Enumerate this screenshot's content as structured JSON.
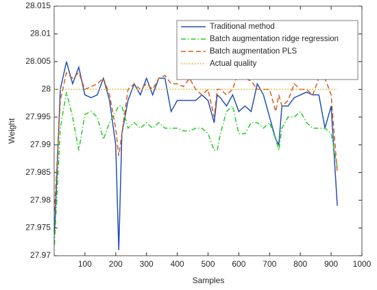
{
  "chart_data": {
    "type": "line",
    "x_label": "Samples",
    "y_label": "Weight",
    "x": [
      1,
      20,
      40,
      60,
      80,
      100,
      120,
      140,
      160,
      180,
      200,
      210,
      220,
      240,
      260,
      280,
      300,
      320,
      340,
      360,
      380,
      400,
      420,
      440,
      460,
      480,
      500,
      520,
      530,
      540,
      560,
      580,
      600,
      620,
      640,
      660,
      680,
      700,
      720,
      730,
      740,
      760,
      780,
      800,
      820,
      840,
      860,
      880,
      900,
      920
    ],
    "series": [
      {
        "name": "Traditional method",
        "color": "#1f4fb4",
        "linestyle": "solid",
        "values": [
          27.974,
          28.0,
          28.005,
          28.001,
          28.004,
          27.999,
          27.9985,
          27.999,
          28.002,
          27.998,
          27.99,
          27.971,
          27.992,
          27.998,
          28.001,
          27.999,
          28.002,
          27.999,
          28.002,
          28.002,
          27.996,
          27.998,
          27.998,
          27.998,
          27.998,
          27.999,
          27.998,
          27.994,
          27.999,
          27.9985,
          27.997,
          27.999,
          27.996,
          27.997,
          27.996,
          28.001,
          27.999,
          27.995,
          27.991,
          27.99,
          27.997,
          27.997,
          27.9985,
          27.999,
          27.9995,
          27.999,
          27.999,
          27.993,
          27.997,
          27.979
        ]
      },
      {
        "name": "Batch augmentation ridge regression",
        "color": "#22cc22",
        "linestyle": "dashdot",
        "values": [
          27.972,
          27.993,
          27.9995,
          27.995,
          27.989,
          27.9955,
          27.996,
          27.995,
          27.991,
          27.994,
          27.996,
          27.997,
          27.997,
          27.993,
          27.994,
          27.993,
          27.994,
          27.993,
          27.994,
          27.993,
          27.993,
          27.993,
          27.9925,
          27.9925,
          27.993,
          27.993,
          27.992,
          27.989,
          27.989,
          27.992,
          27.996,
          27.997,
          27.992,
          27.992,
          27.994,
          27.994,
          27.993,
          27.994,
          27.991,
          27.989,
          27.993,
          27.995,
          27.995,
          27.996,
          27.994,
          27.993,
          27.993,
          27.993,
          27.992,
          27.986
        ]
      },
      {
        "name": "Batch augmentation PLS",
        "color": "#d9591a",
        "linestyle": "dashed",
        "values": [
          27.978,
          27.998,
          28.003,
          28.002,
          28.003,
          28.0,
          28.0005,
          28.001,
          28.002,
          27.999,
          27.993,
          27.988,
          27.992,
          28.0,
          28.001,
          28.0,
          28.001,
          28.0,
          28.002,
          28.0025,
          28.001,
          28.001,
          28.0005,
          28.002,
          28.0,
          27.999,
          28.0,
          27.995,
          28.0,
          28.0,
          27.999,
          28.0,
          28.0035,
          28.002,
          28.0015,
          28.0,
          28.0,
          28.0,
          27.996,
          27.999,
          27.997,
          27.998,
          28.001,
          28.0,
          28.0,
          27.999,
          28.002,
          28.002,
          27.999,
          27.985
        ]
      },
      {
        "name": "Actual quality",
        "color": "#e8a317",
        "linestyle": "dotted",
        "values": [
          28,
          28,
          28,
          28,
          28,
          28,
          28,
          28,
          28,
          28,
          28,
          28,
          28,
          28,
          28,
          28,
          28,
          28,
          28,
          28,
          28,
          28,
          28,
          28,
          28,
          28,
          28,
          28,
          28,
          28,
          28,
          28,
          28,
          28,
          28,
          28,
          28,
          28,
          28,
          28,
          28,
          28,
          28,
          28,
          28,
          28,
          28,
          28,
          28,
          28
        ]
      }
    ],
    "xlim": [
      0,
      1000
    ],
    "xticks": [
      100,
      200,
      300,
      400,
      500,
      600,
      700,
      800,
      900,
      1000
    ],
    "ylim": [
      27.97,
      28.015
    ],
    "yticks": [
      27.97,
      27.975,
      27.98,
      27.985,
      27.99,
      27.995,
      28,
      28.005,
      28.01,
      28.015
    ],
    "grid": false,
    "legend": "upper right"
  }
}
